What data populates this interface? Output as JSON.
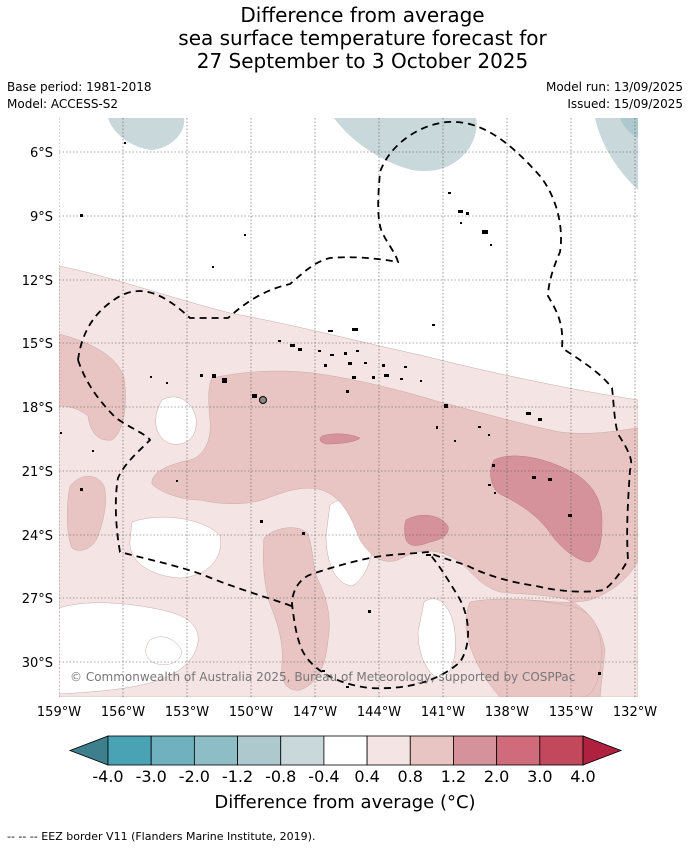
{
  "title": {
    "line1": "Difference from average",
    "line2": "sea surface temperature forecast for",
    "line3": "27 September to 3 October 2025"
  },
  "meta": {
    "base_period": "Base period: 1981-2018",
    "model": "Model: ACCESS-S2",
    "model_run": "Model run: 13/09/2025",
    "issued": "Issued: 15/09/2025"
  },
  "map": {
    "lat_labels": [
      "6°S",
      "9°S",
      "12°S",
      "15°S",
      "18°S",
      "21°S",
      "24°S",
      "27°S",
      "30°S"
    ],
    "lon_labels": [
      "159°W",
      "156°W",
      "153°W",
      "150°W",
      "147°W",
      "144°W",
      "141°W",
      "138°W",
      "135°W",
      "132°W"
    ],
    "copyright": "© Commonwealth of Australia 2025, Bureau of Meteorology, supported by COSPPac",
    "colors": {
      "cool_4": "#3d7f8c",
      "cool_3": "#4aa3b4",
      "cool_2": "#6fb1bf",
      "cool_1_2": "#8dbdc5",
      "cool_0_8": "#adc9ce",
      "cool_0_4": "#c8d8db",
      "neutral": "#ffffff",
      "warm_0_4": "#f4e4e3",
      "warm_0_8": "#e8c5c3",
      "warm_1_2": "#d6929a",
      "warm_2_0": "#cf6b7a",
      "warm_3_0": "#c2485b",
      "warm_4_0": "#b0203f"
    }
  },
  "colorbar": {
    "ticks": [
      "-4.0",
      "-3.0",
      "-2.0",
      "-1.2",
      "-0.8",
      "-0.4",
      "0.4",
      "0.8",
      "1.2",
      "2.0",
      "3.0",
      "4.0"
    ],
    "colors": [
      "#4aa3b4",
      "#6fb1bf",
      "#8dbdc5",
      "#adc9ce",
      "#c8d8db",
      "#ffffff",
      "#f4e4e3",
      "#e8c5c3",
      "#d6929a",
      "#cf6b7a",
      "#c2485b"
    ],
    "under_color": "#3d7f8c",
    "over_color": "#b0203f",
    "label": "Difference from average (°C)"
  },
  "legend_note": "--  --  -- EEZ border V11 (Flanders Marine Institute, 2019)."
}
